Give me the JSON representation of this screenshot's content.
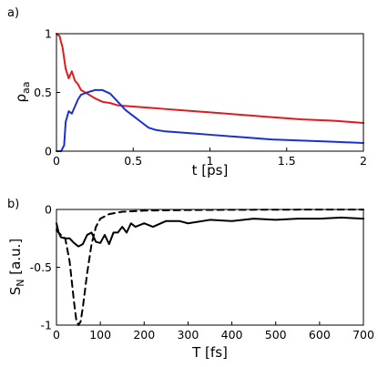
{
  "chart_data": [
    {
      "type": "line",
      "panel_label": "a)",
      "xlabel": "t [ps]",
      "ylabel_main": "ρ",
      "ylabel_sub": "aa",
      "xlim": [
        0,
        2
      ],
      "ylim": [
        0,
        1
      ],
      "xticks": [
        0,
        0.5,
        1,
        1.5,
        2
      ],
      "xtick_labels": [
        "0",
        "0.5",
        "1",
        "1.5",
        "2"
      ],
      "yticks": [
        0,
        0.5,
        1
      ],
      "ytick_labels": [
        "0",
        "0.5",
        "1"
      ],
      "grid": false,
      "series": [
        {
          "color": "#e31a1c",
          "style": "solid",
          "x": [
            0,
            0.02,
            0.04,
            0.06,
            0.08,
            0.1,
            0.12,
            0.14,
            0.16,
            0.2,
            0.25,
            0.3,
            0.35,
            0.4,
            0.5,
            0.6,
            0.7,
            0.8,
            0.9,
            1.0,
            1.2,
            1.4,
            1.6,
            1.8,
            2.0
          ],
          "y": [
            1.0,
            0.98,
            0.88,
            0.7,
            0.62,
            0.68,
            0.6,
            0.57,
            0.52,
            0.49,
            0.45,
            0.42,
            0.41,
            0.39,
            0.38,
            0.37,
            0.36,
            0.35,
            0.34,
            0.33,
            0.31,
            0.29,
            0.27,
            0.26,
            0.24
          ]
        },
        {
          "color": "#1a2fd6",
          "style": "solid",
          "x": [
            0,
            0.03,
            0.05,
            0.06,
            0.08,
            0.1,
            0.12,
            0.14,
            0.16,
            0.2,
            0.25,
            0.3,
            0.35,
            0.4,
            0.45,
            0.5,
            0.55,
            0.6,
            0.65,
            0.7,
            0.8,
            0.9,
            1.0,
            1.2,
            1.4,
            1.6,
            1.8,
            2.0
          ],
          "y": [
            0,
            0,
            0.05,
            0.25,
            0.34,
            0.32,
            0.38,
            0.44,
            0.48,
            0.5,
            0.52,
            0.52,
            0.49,
            0.42,
            0.35,
            0.3,
            0.25,
            0.2,
            0.18,
            0.17,
            0.16,
            0.15,
            0.14,
            0.12,
            0.1,
            0.09,
            0.08,
            0.07
          ]
        }
      ]
    },
    {
      "type": "line",
      "panel_label": "b)",
      "xlabel": "T [fs]",
      "ylabel_main": "S",
      "ylabel_sub": "N",
      "ylabel_unit": " [a.u.]",
      "xlim": [
        0,
        700
      ],
      "ylim": [
        -1,
        0
      ],
      "xticks": [
        0,
        100,
        200,
        300,
        400,
        500,
        600,
        700
      ],
      "xtick_labels": [
        "0",
        "100",
        "200",
        "300",
        "400",
        "500",
        "600",
        "700"
      ],
      "yticks": [
        -1,
        -0.5,
        0
      ],
      "ytick_labels": [
        "-1",
        "-0.5",
        "0"
      ],
      "grid": false,
      "series": [
        {
          "color": "#000000",
          "style": "solid",
          "x": [
            0,
            5,
            10,
            20,
            30,
            40,
            50,
            60,
            70,
            80,
            90,
            100,
            110,
            120,
            130,
            140,
            150,
            160,
            170,
            180,
            200,
            220,
            250,
            280,
            300,
            350,
            400,
            450,
            500,
            550,
            600,
            650,
            700
          ],
          "y": [
            -0.12,
            -0.2,
            -0.24,
            -0.25,
            -0.25,
            -0.29,
            -0.32,
            -0.3,
            -0.22,
            -0.2,
            -0.28,
            -0.29,
            -0.22,
            -0.3,
            -0.2,
            -0.2,
            -0.15,
            -0.2,
            -0.12,
            -0.15,
            -0.12,
            -0.15,
            -0.1,
            -0.1,
            -0.12,
            -0.09,
            -0.1,
            -0.08,
            -0.09,
            -0.08,
            -0.08,
            -0.07,
            -0.08
          ]
        },
        {
          "color": "#000000",
          "style": "dashed",
          "x": [
            0,
            10,
            20,
            30,
            40,
            45,
            50,
            55,
            60,
            70,
            80,
            90,
            100,
            120,
            150,
            200,
            300,
            400,
            500,
            600,
            700
          ],
          "y": [
            -0.18,
            -0.22,
            -0.25,
            -0.45,
            -0.8,
            -0.95,
            -1.0,
            -0.97,
            -0.85,
            -0.55,
            -0.3,
            -0.15,
            -0.08,
            -0.04,
            -0.02,
            -0.01,
            -0.005,
            -0.003,
            -0.002,
            -0.001,
            -0.001
          ]
        }
      ]
    }
  ]
}
